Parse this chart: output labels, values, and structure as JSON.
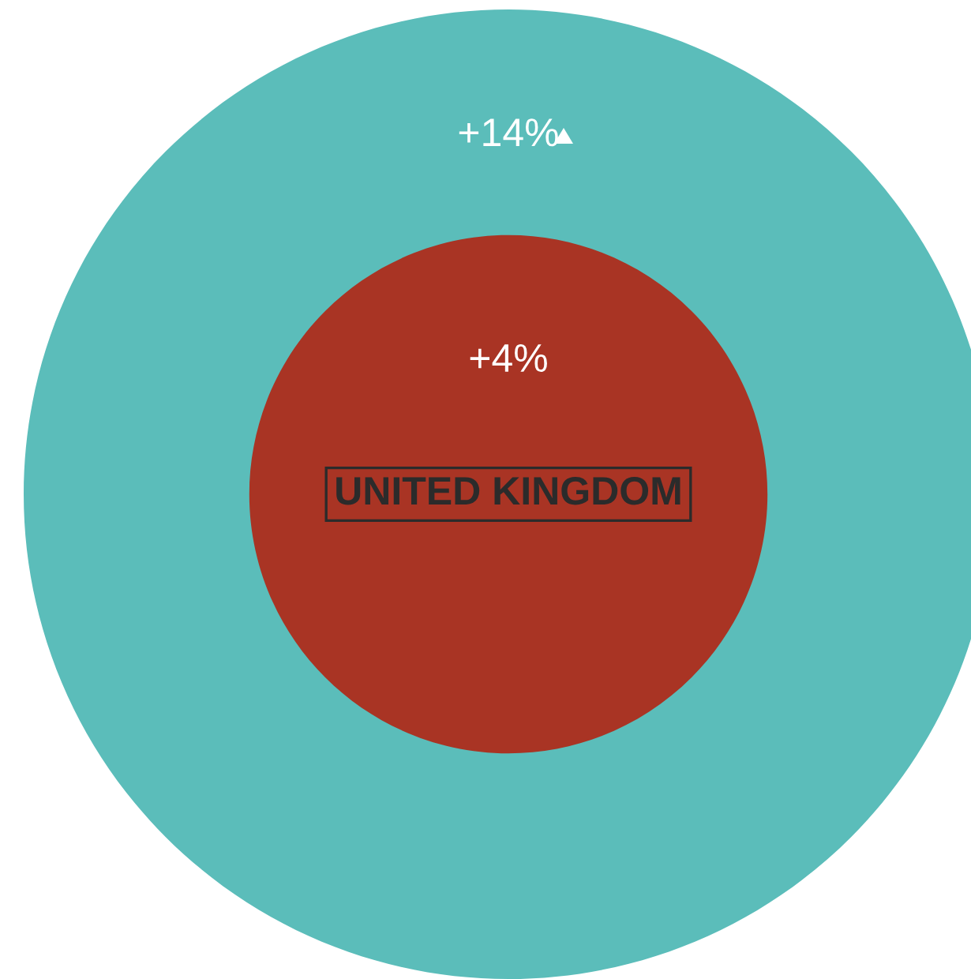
{
  "chart_data": {
    "type": "other",
    "values": [
      14,
      4
    ],
    "value_labels": [
      "+14%",
      "+4%"
    ],
    "colors": [
      "#5bbdba",
      "#a93424"
    ],
    "annotations": [
      "UNITED KINGDOM"
    ]
  }
}
